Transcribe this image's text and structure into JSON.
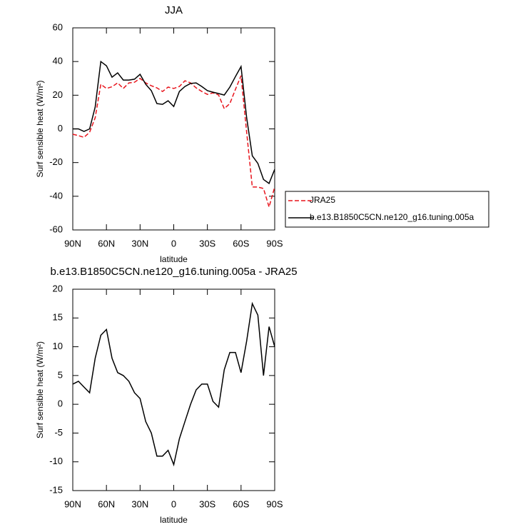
{
  "chart_data": [
    {
      "type": "line",
      "title": "JJA",
      "xlabel": "latitude",
      "ylabel": "Surf sensible heat (W/m²)",
      "x": [
        90,
        85,
        80,
        75,
        70,
        65,
        60,
        55,
        50,
        45,
        40,
        35,
        30,
        25,
        20,
        15,
        10,
        5,
        0,
        -5,
        -10,
        -15,
        -20,
        -25,
        -30,
        -35,
        -40,
        -45,
        -50,
        -55,
        -60,
        -65,
        -70,
        -75,
        -80,
        -85,
        -90
      ],
      "series": [
        {
          "name": "JRA25",
          "color": "#e8141c",
          "style": "dashed",
          "values": [
            -3.2,
            -4,
            -5,
            -2,
            6.6,
            26.5,
            24,
            25,
            27.3,
            24,
            27.3,
            27.7,
            30,
            27.3,
            25.6,
            24.4,
            22.2,
            24.8,
            24,
            25.2,
            28.6,
            27.3,
            24.4,
            22.2,
            20.5,
            21.4,
            20.1,
            12,
            15,
            23.5,
            31.6,
            -2,
            -34.5,
            -34.5,
            -35.4,
            -46.4,
            -34.5
          ]
        },
        {
          "name": "b.e13.B1850C5CN.ne120_g16.tuning.005a",
          "color": "#000000",
          "style": "solid",
          "values": [
            0,
            0,
            -1.5,
            0,
            13,
            40,
            37.5,
            30.7,
            33.3,
            29,
            29,
            29.5,
            32.4,
            26.5,
            22.7,
            15,
            14.6,
            16.7,
            13.3,
            22.2,
            25.2,
            27,
            27.3,
            25.2,
            22.7,
            21.8,
            21,
            20.1,
            24.8,
            31.1,
            37,
            6.6,
            -16,
            -20.5,
            -30,
            -32.4,
            -24
          ]
        }
      ],
      "xlim": [
        90,
        -90
      ],
      "xticks": [
        {
          "value": 90,
          "label": "90N"
        },
        {
          "value": 60,
          "label": "60N"
        },
        {
          "value": 30,
          "label": "30N"
        },
        0,
        {
          "value": -30,
          "label": "30S"
        },
        {
          "value": -60,
          "label": "60S"
        },
        {
          "value": -90,
          "label": "90S"
        }
      ],
      "ylim": [
        -60,
        60
      ],
      "yticks": [
        -60,
        -40,
        -20,
        0,
        20,
        40,
        60
      ],
      "legend": "right"
    },
    {
      "type": "line",
      "title": "b.e13.B1850C5CN.ne120_g16.tuning.005a - JRA25",
      "xlabel": "latitude",
      "ylabel": "Surf sensible heat (W/m²)",
      "x": [
        90,
        85,
        80,
        75,
        70,
        65,
        60,
        55,
        50,
        45,
        40,
        35,
        30,
        25,
        20,
        15,
        10,
        5,
        0,
        -5,
        -10,
        -15,
        -20,
        -25,
        -30,
        -35,
        -40,
        -45,
        -50,
        -55,
        -60,
        -65,
        -70,
        -75,
        -80,
        -85,
        -90
      ],
      "values": [
        3.5,
        4,
        3,
        2,
        8,
        12,
        13,
        8,
        5.5,
        5,
        4,
        2,
        1,
        -3,
        -5,
        -9,
        -9,
        -8,
        -10.5,
        -6,
        -3,
        0,
        2.5,
        3.5,
        3.5,
        0.5,
        -0.5,
        6,
        9,
        9,
        5.5,
        11,
        17.5,
        15.5,
        5,
        13.5,
        10
      ],
      "color": "#000000",
      "xlim": [
        90,
        -90
      ],
      "xticks": [
        {
          "value": 90,
          "label": "90N"
        },
        {
          "value": 60,
          "label": "60N"
        },
        {
          "value": 30,
          "label": "30N"
        },
        0,
        {
          "value": -30,
          "label": "30S"
        },
        {
          "value": -60,
          "label": "60S"
        },
        {
          "value": -90,
          "label": "90S"
        }
      ],
      "ylim": [
        -15,
        20
      ],
      "yticks": [
        -15,
        -10,
        -5,
        0,
        5,
        10,
        15,
        20
      ]
    }
  ]
}
